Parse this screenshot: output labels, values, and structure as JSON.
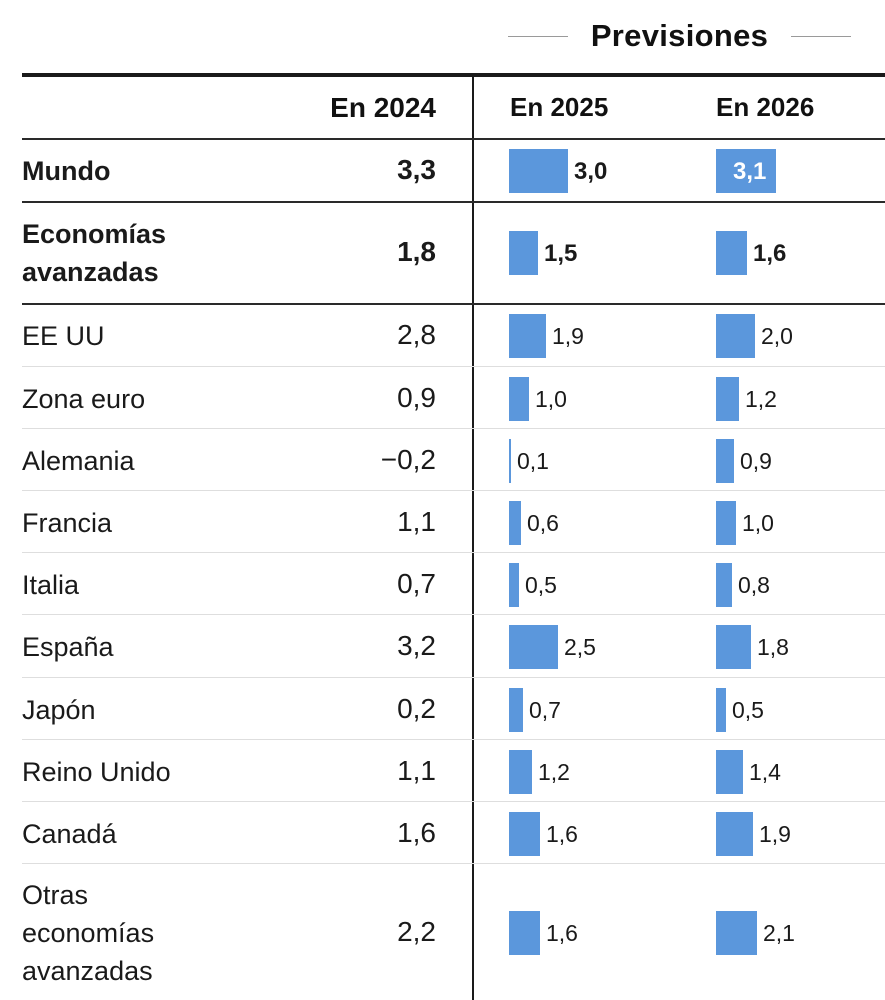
{
  "header": {
    "forecast_title": "Previsiones",
    "col_2024": "En 2024",
    "col_2025": "En 2025",
    "col_2026": "En 2026"
  },
  "rows": [
    {
      "label": "Mundo",
      "v2024": "3,3",
      "v2025": "3,0",
      "v2026": "3,1"
    },
    {
      "label": "Economías avanzadas",
      "v2024": "1,8",
      "v2025": "1,5",
      "v2026": "1,6"
    },
    {
      "label": "EE UU",
      "v2024": "2,8",
      "v2025": "1,9",
      "v2026": "2,0"
    },
    {
      "label": "Zona euro",
      "v2024": "0,9",
      "v2025": "1,0",
      "v2026": "1,2"
    },
    {
      "label": "Alemania",
      "v2024": "−0,2",
      "v2025": "0,1",
      "v2026": "0,9"
    },
    {
      "label": "Francia",
      "v2024": "1,1",
      "v2025": "0,6",
      "v2026": "1,0"
    },
    {
      "label": "Italia",
      "v2024": "0,7",
      "v2025": "0,5",
      "v2026": "0,8"
    },
    {
      "label": "España",
      "v2024": "3,2",
      "v2025": "2,5",
      "v2026": "1,8"
    },
    {
      "label": "Japón",
      "v2024": "0,2",
      "v2025": "0,7",
      "v2026": "0,5"
    },
    {
      "label": "Reino Unido",
      "v2024": "1,1",
      "v2025": "1,2",
      "v2026": "1,4"
    },
    {
      "label": "Canadá",
      "v2024": "1,6",
      "v2025": "1,6",
      "v2026": "1,9"
    },
    {
      "label": "Otras economías avanzadas",
      "v2024": "2,2",
      "v2025": "1,6",
      "v2026": "2,1"
    }
  ],
  "colors": {
    "bar": "#5b97dc",
    "text": "#1a1a1a",
    "rule": "#1a1a1a",
    "grid": "#dedede"
  },
  "chart_data": {
    "type": "table",
    "title": "Previsiones",
    "columns": [
      "En 2024",
      "En 2025",
      "En 2026"
    ],
    "categories": [
      "Mundo",
      "Economías avanzadas",
      "EE UU",
      "Zona euro",
      "Alemania",
      "Francia",
      "Italia",
      "España",
      "Japón",
      "Reino Unido",
      "Canadá",
      "Otras economías avanzadas"
    ],
    "series": [
      {
        "name": "En 2024",
        "values": [
          3.3,
          1.8,
          2.8,
          0.9,
          -0.2,
          1.1,
          0.7,
          3.2,
          0.2,
          1.1,
          1.6,
          2.2
        ]
      },
      {
        "name": "En 2025",
        "values": [
          3.0,
          1.5,
          1.9,
          1.0,
          0.1,
          0.6,
          0.5,
          2.5,
          0.7,
          1.2,
          1.6,
          1.6
        ]
      },
      {
        "name": "En 2026",
        "values": [
          3.1,
          1.6,
          2.0,
          1.2,
          0.9,
          1.0,
          0.8,
          1.8,
          0.5,
          1.4,
          1.9,
          2.1
        ]
      }
    ],
    "xlabel": "",
    "ylabel": ""
  }
}
